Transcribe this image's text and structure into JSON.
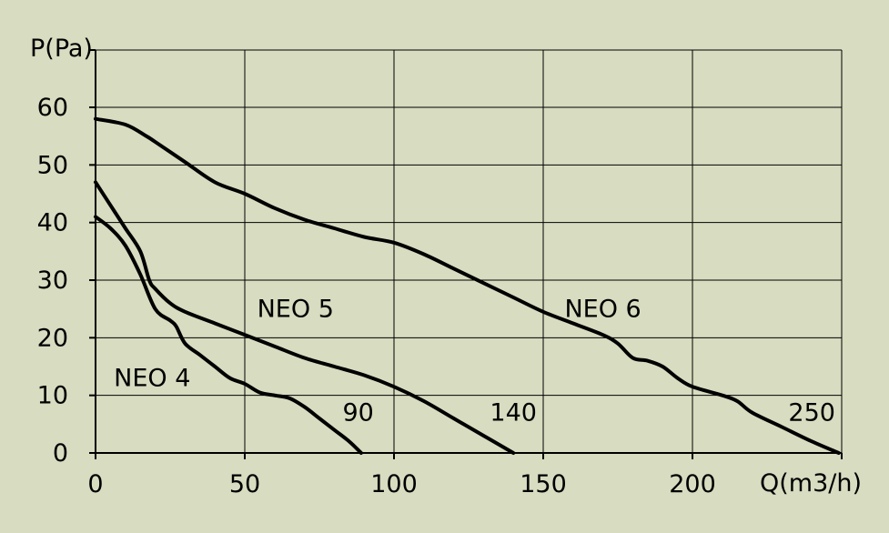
{
  "chart_data": {
    "type": "line",
    "xlabel": "Q(m3/h)",
    "ylabel": "P(Pa)",
    "xlim": [
      0,
      250
    ],
    "ylim": [
      0,
      60
    ],
    "xticks": [
      {
        "value": 0,
        "label": "0"
      },
      {
        "value": 50,
        "label": "50"
      },
      {
        "value": 100,
        "label": "100"
      },
      {
        "value": 150,
        "label": "150"
      },
      {
        "value": 200,
        "label": "200"
      }
    ],
    "yticks": [
      {
        "value": 0,
        "label": "0"
      },
      {
        "value": 10,
        "label": "10"
      },
      {
        "value": 20,
        "label": "20"
      },
      {
        "value": 30,
        "label": "30"
      },
      {
        "value": 40,
        "label": "40"
      },
      {
        "value": 50,
        "label": "50"
      },
      {
        "value": 60,
        "label": "60"
      }
    ],
    "grid": true,
    "series": [
      {
        "name": "NEO 4",
        "x": [
          0,
          5,
          10,
          15,
          20,
          25,
          27,
          30,
          35,
          40,
          45,
          50,
          55,
          60,
          65,
          70,
          75,
          80,
          85,
          89
        ],
        "y": [
          41,
          39,
          36,
          31,
          25,
          23,
          22,
          19,
          17,
          15,
          13,
          12,
          10.5,
          10,
          9.5,
          8,
          6,
          4,
          2,
          0
        ]
      },
      {
        "name": "NEO 5",
        "x": [
          0,
          5,
          10,
          15,
          18,
          20,
          25,
          30,
          40,
          50,
          60,
          70,
          80,
          90,
          100,
          110,
          120,
          130,
          140
        ],
        "y": [
          47,
          43,
          39,
          35,
          30,
          28.5,
          26,
          24.5,
          22.5,
          20.5,
          18.5,
          16.5,
          15,
          13.5,
          11.5,
          9,
          6,
          3,
          0
        ]
      },
      {
        "name": "NEO 6",
        "x": [
          0,
          10,
          17,
          20,
          30,
          40,
          50,
          60,
          70,
          80,
          90,
          100,
          110,
          120,
          130,
          140,
          150,
          160,
          170,
          175,
          180,
          185,
          190,
          195,
          200,
          210,
          215,
          220,
          230,
          240,
          249
        ],
        "y": [
          58,
          57,
          55,
          54,
          50.5,
          47,
          45,
          42.5,
          40.5,
          39,
          37.5,
          36.5,
          34.5,
          32,
          29.5,
          27,
          24.5,
          22.5,
          20.5,
          19,
          16.5,
          16,
          15,
          13,
          11.5,
          10,
          9,
          7,
          4.5,
          2,
          0
        ]
      }
    ],
    "annotations": [
      {
        "text": "NEO 4",
        "x": 19,
        "y": 13
      },
      {
        "text": "NEO 5",
        "x": 67,
        "y": 25
      },
      {
        "text": "NEO 6",
        "x": 170,
        "y": 25
      },
      {
        "text": "90",
        "x": 88,
        "y": 7
      },
      {
        "text": "140",
        "x": 140,
        "y": 7
      },
      {
        "text": "250",
        "x": 240,
        "y": 7
      }
    ]
  }
}
